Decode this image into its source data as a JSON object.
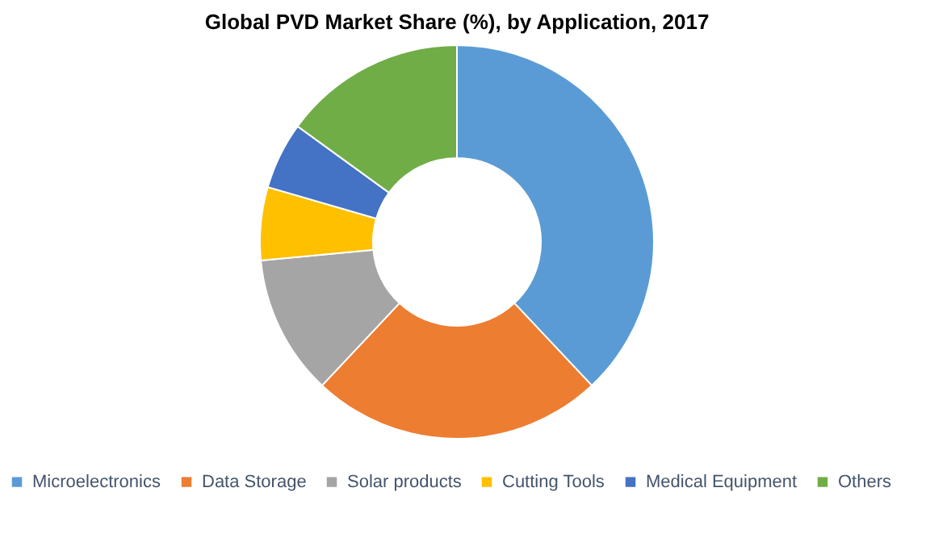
{
  "chart_data": {
    "type": "donut",
    "title": "Global PVD Market Share (%), by Application, 2017",
    "categories": [
      "Microelectronics",
      "Data Storage",
      "Solar products",
      "Cutting Tools",
      "Medical Equipment",
      "Others"
    ],
    "values": [
      38,
      24,
      11.5,
      6,
      5.5,
      15
    ],
    "colors": [
      "#5b9bd5",
      "#ed7d31",
      "#a5a5a5",
      "#ffc000",
      "#4472c4",
      "#70ad47"
    ],
    "legend": "bottom"
  }
}
